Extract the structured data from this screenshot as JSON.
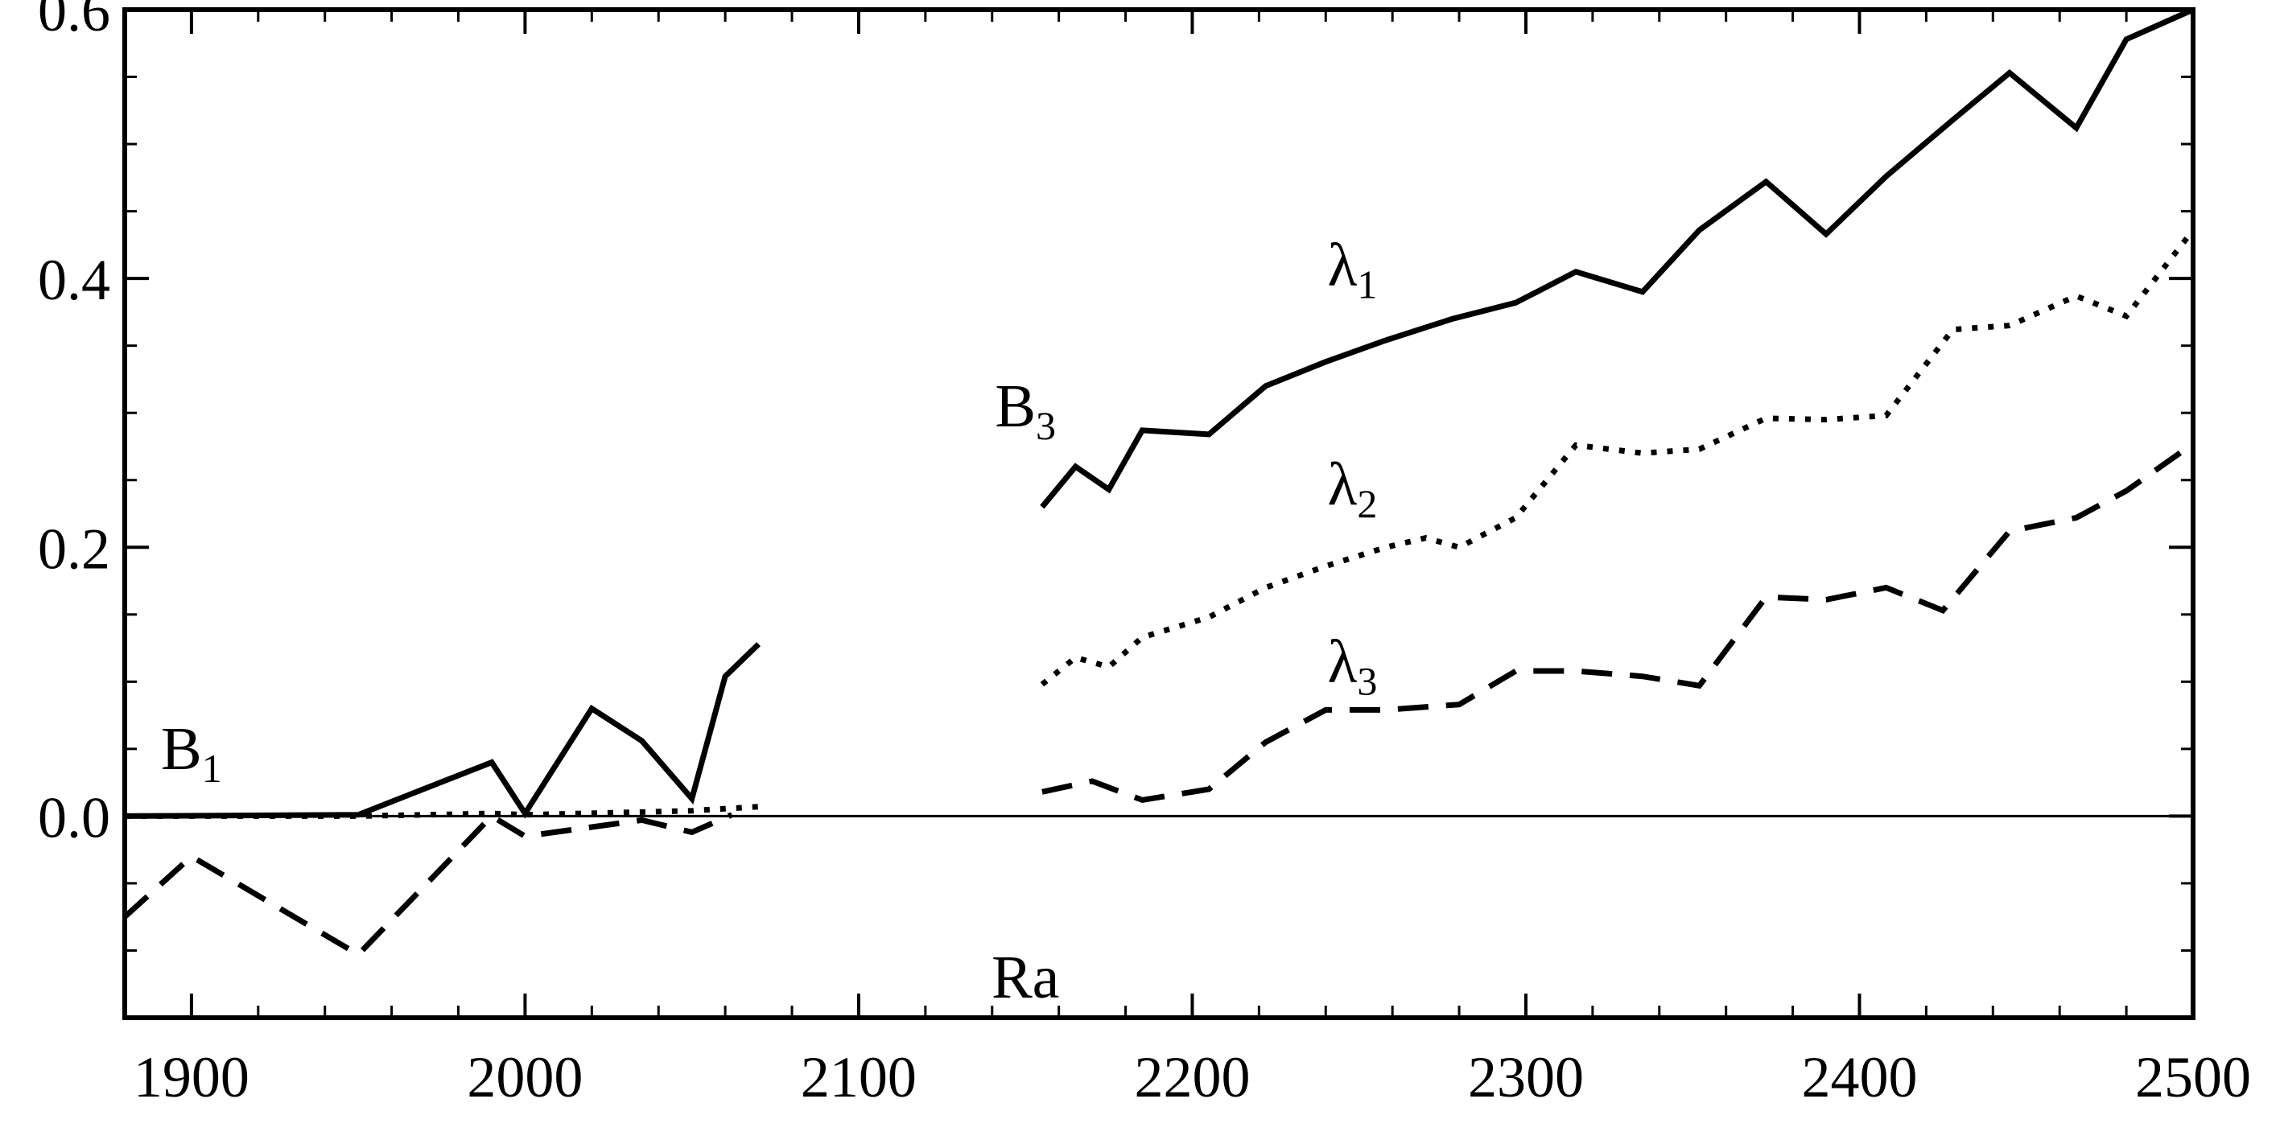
{
  "chart_data": {
    "type": "line",
    "xlim": [
      1880,
      2500
    ],
    "ylim": [
      -0.15,
      0.6
    ],
    "x_ticks": [
      1900,
      2000,
      2100,
      2200,
      2300,
      2400,
      2500
    ],
    "x_tick_labels": [
      "1900",
      "2000",
      "2100",
      "2200",
      "2300",
      "2400",
      "2500"
    ],
    "y_ticks": [
      0.0,
      0.2,
      0.4,
      0.6
    ],
    "y_tick_labels": [
      "0.0",
      "0.2",
      "0.4",
      "0.6"
    ],
    "grid": false,
    "legend": "none",
    "series": [
      {
        "key": "lambda1",
        "style": "solid",
        "segments": [
          {
            "x": [
              1880,
              1950,
              1990,
              2000,
              2020,
              2035,
              2050,
              2060,
              2070
            ],
            "y": [
              0.0,
              0.001,
              0.04,
              0.002,
              0.08,
              0.056,
              0.013,
              0.104,
              0.128
            ]
          },
          {
            "x": [
              2155,
              2165,
              2175,
              2185,
              2205,
              2222,
              2240,
              2258,
              2278,
              2297,
              2315,
              2335,
              2352,
              2372,
              2390,
              2408,
              2428,
              2445,
              2465,
              2480,
              2500
            ],
            "y": [
              0.23,
              0.26,
              0.243,
              0.287,
              0.284,
              0.32,
              0.338,
              0.354,
              0.37,
              0.382,
              0.405,
              0.39,
              0.436,
              0.472,
              0.433,
              0.476,
              0.518,
              0.553,
              0.512,
              0.578,
              0.6
            ]
          }
        ]
      },
      {
        "key": "lambda2",
        "style": "dotted",
        "segments": [
          {
            "x": [
              1880,
              1950,
              1990,
              2000,
              2035,
              2050,
              2070
            ],
            "y": [
              0.0,
              0.0,
              0.002,
              0.001,
              0.003,
              0.004,
              0.007
            ]
          },
          {
            "x": [
              2155,
              2165,
              2175,
              2185,
              2205,
              2222,
              2240,
              2258,
              2270,
              2280,
              2297,
              2315,
              2335,
              2352,
              2372,
              2390,
              2408,
              2428,
              2445,
              2465,
              2480,
              2500
            ],
            "y": [
              0.098,
              0.118,
              0.111,
              0.133,
              0.148,
              0.17,
              0.186,
              0.2,
              0.207,
              0.2,
              0.222,
              0.276,
              0.27,
              0.273,
              0.296,
              0.295,
              0.298,
              0.362,
              0.365,
              0.387,
              0.372,
              0.436
            ]
          }
        ]
      },
      {
        "key": "lambda3",
        "style": "dashed",
        "segments": [
          {
            "x": [
              1880,
              1900,
              1950,
              1990,
              2000,
              2035,
              2050,
              2062
            ],
            "y": [
              -0.075,
              -0.03,
              -0.103,
              0.0,
              -0.015,
              -0.003,
              -0.012,
              0.001
            ]
          },
          {
            "x": [
              2155,
              2170,
              2185,
              2205,
              2222,
              2240,
              2258,
              2280,
              2297,
              2315,
              2335,
              2352,
              2372,
              2390,
              2408,
              2425,
              2445,
              2465,
              2480,
              2500
            ],
            "y": [
              0.018,
              0.026,
              0.012,
              0.02,
              0.055,
              0.079,
              0.079,
              0.083,
              0.108,
              0.108,
              0.104,
              0.097,
              0.163,
              0.161,
              0.17,
              0.153,
              0.212,
              0.222,
              0.242,
              0.277
            ]
          }
        ]
      }
    ],
    "annotations": [
      {
        "key": "lambda1",
        "main": "λ",
        "sub": "1",
        "x": 2248,
        "y": 0.395
      },
      {
        "key": "lambda2",
        "main": "λ",
        "sub": "2",
        "x": 2248,
        "y": 0.232
      },
      {
        "key": "lambda3",
        "main": "λ",
        "sub": "3",
        "x": 2248,
        "y": 0.1
      },
      {
        "key": "B1",
        "main": "B",
        "sub": "1",
        "x": 1900,
        "y": 0.035
      },
      {
        "key": "B3",
        "main": "B",
        "sub": "3",
        "x": 2150,
        "y": 0.29
      },
      {
        "key": "Ra",
        "main": "Ra",
        "sub": "",
        "x": 2150,
        "y": -0.135
      }
    ]
  }
}
